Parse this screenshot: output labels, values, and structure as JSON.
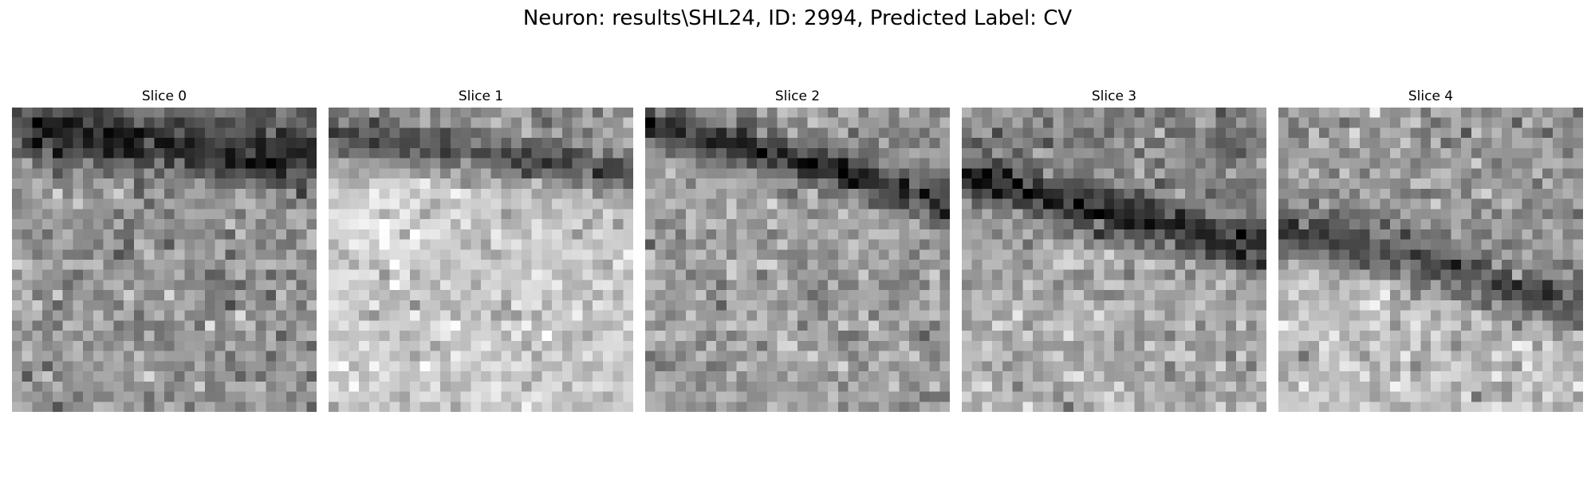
{
  "figure": {
    "title": "Neuron: results\\SHL24, ID: 2994, Predicted Label: CV",
    "colormap": "gray",
    "panels": [
      {
        "title": "Slice 0"
      },
      {
        "title": "Slice 1"
      },
      {
        "title": "Slice 2"
      },
      {
        "title": "Slice 3"
      },
      {
        "title": "Slice 4"
      }
    ]
  }
}
